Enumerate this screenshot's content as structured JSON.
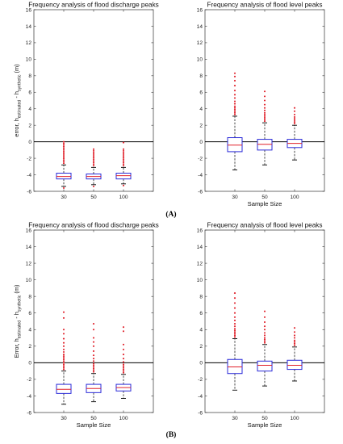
{
  "chart_data": [
    {
      "panel": "A",
      "type": "box",
      "title": "Frequency analysis of flood discharge peaks",
      "ylabel_main": "error, h",
      "ylabel_sub1": "estimated",
      "ylabel_mid": " - h",
      "ylabel_sub2": "synthetic",
      "ylabel_end": " (m)",
      "xlabel": "",
      "categories": [
        "30",
        "50",
        "100"
      ],
      "ylim": [
        -6,
        16
      ],
      "yticks": [
        -6,
        -4,
        -2,
        0,
        2,
        4,
        6,
        8,
        10,
        12,
        14,
        16
      ],
      "boxes": [
        {
          "whislo": -5.4,
          "q1": -4.5,
          "med": -4.2,
          "q3": -3.8,
          "whishi": -2.8,
          "fliers_hi": [
            -2.6,
            -2.4,
            -2.2,
            -2.0,
            -1.8,
            -1.6,
            -1.4,
            -1.2,
            -1.0,
            -0.8,
            -0.6,
            -0.4,
            -0.2,
            0.0
          ],
          "fliers_lo": [
            -5.6
          ]
        },
        {
          "whislo": -5.2,
          "q1": -4.5,
          "med": -4.2,
          "q3": -3.9,
          "whishi": -3.1,
          "fliers_hi": [
            -2.9,
            -2.7,
            -2.5,
            -2.3,
            -2.1,
            -1.9,
            -1.7,
            -1.5,
            -1.3,
            -1.1,
            -0.9
          ],
          "fliers_lo": [
            -5.4
          ]
        },
        {
          "whislo": -5.1,
          "q1": -4.5,
          "med": -4.1,
          "q3": -3.8,
          "whishi": -3.1,
          "fliers_hi": [
            -2.9,
            -2.7,
            -2.5,
            -2.3,
            -2.1,
            -1.9,
            -1.7,
            -1.5,
            -1.3,
            -1.1,
            -0.9,
            -0.1
          ],
          "fliers_lo": [
            -5.3
          ]
        }
      ]
    },
    {
      "panel": "A",
      "type": "box",
      "title": "Frequency analysis of flood level peaks",
      "xlabel": "Sample Size",
      "categories": [
        "30",
        "50",
        "100"
      ],
      "ylim": [
        -6,
        16
      ],
      "yticks": [
        -6,
        -4,
        -2,
        0,
        2,
        4,
        6,
        8,
        10,
        12,
        14,
        16
      ],
      "boxes": [
        {
          "whislo": -3.4,
          "q1": -1.2,
          "med": -0.4,
          "q3": 0.5,
          "whishi": 3.1,
          "fliers_hi": [
            3.3,
            3.5,
            3.7,
            3.9,
            4.1,
            4.3,
            4.6,
            4.9,
            5.3,
            5.7,
            6.2,
            6.8,
            7.4,
            7.9,
            8.3
          ],
          "fliers_lo": []
        },
        {
          "whislo": -2.8,
          "q1": -1.0,
          "med": -0.3,
          "q3": 0.3,
          "whishi": 2.3,
          "fliers_hi": [
            2.5,
            2.7,
            2.9,
            3.1,
            3.3,
            3.5,
            3.8,
            4.1,
            4.5,
            5.0,
            5.5,
            6.1
          ],
          "fliers_lo": []
        },
        {
          "whislo": -2.2,
          "q1": -0.7,
          "med": -0.2,
          "q3": 0.3,
          "whishi": 2.0,
          "fliers_hi": [
            2.2,
            2.4,
            2.6,
            2.8,
            3.0,
            3.3,
            3.7,
            4.1
          ],
          "fliers_lo": []
        }
      ]
    },
    {
      "panel": "B",
      "type": "box",
      "title": "Frequency analysis of flood discharge peaks",
      "ylabel_main": "Error, h",
      "ylabel_sub1": "estimated",
      "ylabel_mid": " - h",
      "ylabel_sub2": "synthetic",
      "ylabel_end": " (m)",
      "xlabel": "Sample Size",
      "categories": [
        "30",
        "50",
        "100"
      ],
      "ylim": [
        -6,
        16
      ],
      "yticks": [
        -6,
        -4,
        -2,
        0,
        2,
        4,
        6,
        8,
        10,
        12,
        14,
        16
      ],
      "boxes": [
        {
          "whislo": -5.0,
          "q1": -3.7,
          "med": -3.2,
          "q3": -2.6,
          "whishi": -1.0,
          "fliers_hi": [
            -0.8,
            -0.6,
            -0.4,
            -0.2,
            0.0,
            0.2,
            0.4,
            0.6,
            0.8,
            1.0,
            1.3,
            1.6,
            2.0,
            2.4,
            2.9,
            3.5,
            4.0,
            5.4,
            6.1
          ],
          "fliers_lo": []
        },
        {
          "whislo": -4.7,
          "q1": -3.6,
          "med": -3.1,
          "q3": -2.6,
          "whishi": -1.3,
          "fliers_hi": [
            -1.1,
            -0.9,
            -0.7,
            -0.5,
            -0.3,
            -0.1,
            0.2,
            0.5,
            0.9,
            1.4,
            2.0,
            2.5,
            3.0,
            4.0,
            4.7
          ],
          "fliers_lo": []
        },
        {
          "whislo": -4.3,
          "q1": -3.4,
          "med": -3.0,
          "q3": -2.6,
          "whishi": -1.4,
          "fliers_hi": [
            -1.2,
            -1.0,
            -0.8,
            -0.6,
            -0.4,
            -0.2,
            0.1,
            0.5,
            1.0,
            1.6,
            2.2,
            3.8,
            4.3
          ],
          "fliers_lo": []
        }
      ]
    },
    {
      "panel": "B",
      "type": "box",
      "title": "Frequency analysis of flood level peaks",
      "xlabel": "Sample Size",
      "categories": [
        "30",
        "50",
        "100"
      ],
      "ylim": [
        -6,
        16
      ],
      "yticks": [
        -6,
        -4,
        -2,
        0,
        2,
        4,
        6,
        8,
        10,
        12,
        14,
        16
      ],
      "boxes": [
        {
          "whislo": -3.3,
          "q1": -1.3,
          "med": -0.5,
          "q3": 0.4,
          "whishi": 2.9,
          "fliers_hi": [
            3.1,
            3.3,
            3.5,
            3.7,
            3.9,
            4.1,
            4.4,
            4.7,
            5.1,
            5.5,
            6.0,
            6.6,
            7.2,
            7.8,
            8.4
          ],
          "fliers_lo": []
        },
        {
          "whislo": -2.8,
          "q1": -1.0,
          "med": -0.3,
          "q3": 0.2,
          "whishi": 2.2,
          "fliers_hi": [
            2.4,
            2.6,
            2.8,
            3.0,
            3.3,
            3.6,
            4.0,
            4.4,
            4.9,
            5.5,
            6.2
          ],
          "fliers_lo": []
        },
        {
          "whislo": -2.2,
          "q1": -0.8,
          "med": -0.3,
          "q3": 0.3,
          "whishi": 1.9,
          "fliers_hi": [
            2.1,
            2.3,
            2.5,
            2.7,
            3.0,
            3.3,
            3.7,
            4.2
          ],
          "fliers_lo": []
        }
      ]
    }
  ],
  "panel_labels": {
    "A": "(A)",
    "B": "(B)"
  },
  "colors": {
    "box": "#2a2ad8",
    "median": "#e0202a",
    "whisker": "#000000",
    "flier": "#e0202a",
    "zero_line": "#000000",
    "axes": "#333333"
  }
}
